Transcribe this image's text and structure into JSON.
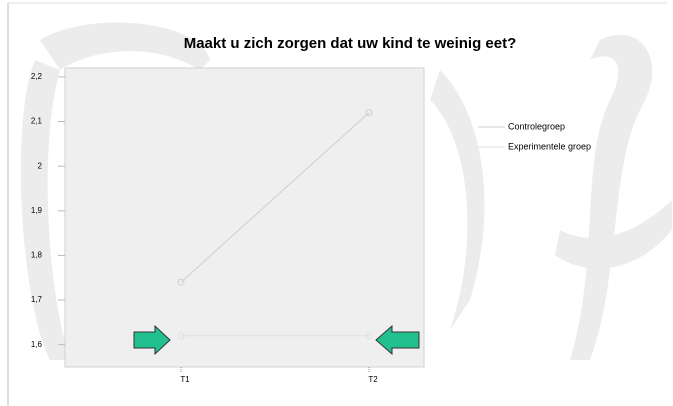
{
  "chart_data": {
    "type": "line",
    "title": "Maakt u zich zorgen dat uw kind te weinig eet?",
    "categories": [
      "T1",
      "T2"
    ],
    "series": [
      {
        "name": "Controlegroep",
        "color": "#cfcfcf",
        "values": [
          1.74,
          2.12
        ]
      },
      {
        "name": "Experimentele groep",
        "color": "#e0e0e0",
        "values": [
          1.62,
          1.62
        ]
      }
    ],
    "ylim": [
      1.55,
      2.22
    ],
    "yticks": [
      {
        "value": 1.6,
        "label": "1,6"
      },
      {
        "value": 1.7,
        "label": "1,7"
      },
      {
        "value": 1.8,
        "label": "1,8"
      },
      {
        "value": 1.9,
        "label": "1,9"
      },
      2,
      {
        "value": 2.1,
        "label": "2,1"
      },
      {
        "value": 2.2,
        "label": "2,2"
      }
    ],
    "legend": "right"
  }
}
